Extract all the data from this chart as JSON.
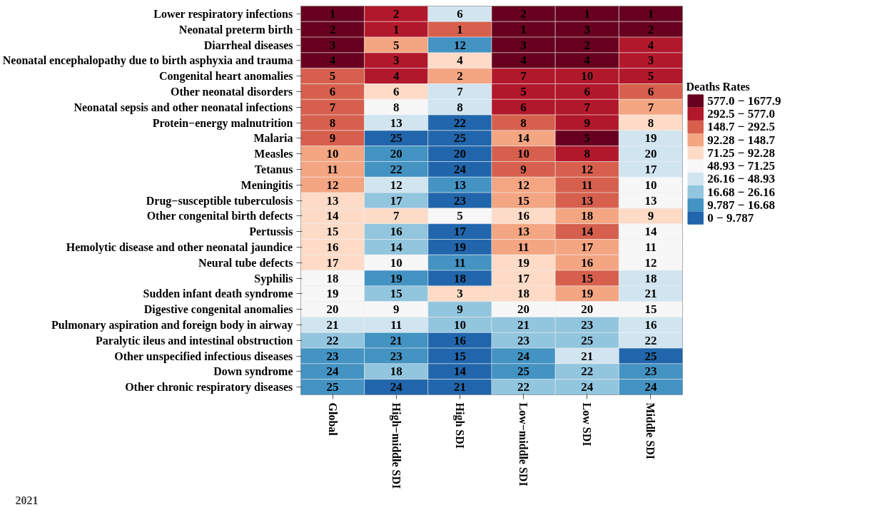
{
  "chart_data": [
    {
      "type": "heatmap",
      "categories": [
        "Global",
        "High−middle SDI",
        "High SDI",
        "Low−middle SDI",
        "Low SDI",
        "Middle SDI"
      ],
      "y_categories": [
        "Lower respiratory infections",
        "Neonatal preterm birth",
        "Diarrheal diseases",
        "Neonatal encephalopathy due to birth asphyxia and trauma",
        "Congenital heart anomalies",
        "Other neonatal disorders",
        "Neonatal sepsis and other neonatal infections",
        "Protein−energy malnutrition",
        "Malaria",
        "Measles",
        "Tetanus",
        "Meningitis",
        "Drug−susceptible tuberculosis",
        "Other congenital birth defects",
        "Pertussis",
        "Hemolytic disease and other neonatal jaundice",
        "Neural tube defects",
        "Syphilis",
        "Sudden infant death syndrome",
        "Digestive congenital anomalies",
        "Pulmonary aspiration and foreign body in airway",
        "Paralytic ileus and intestinal obstruction",
        "Other unspecified infectious diseases",
        "Down syndrome",
        "Other chronic respiratory diseases"
      ],
      "cells": [
        [
          1,
          2,
          6,
          2,
          1,
          1
        ],
        [
          2,
          1,
          1,
          1,
          3,
          2
        ],
        [
          3,
          5,
          12,
          3,
          2,
          4
        ],
        [
          4,
          3,
          4,
          4,
          4,
          3
        ],
        [
          5,
          4,
          2,
          7,
          10,
          5
        ],
        [
          6,
          6,
          7,
          5,
          6,
          6
        ],
        [
          7,
          8,
          8,
          6,
          7,
          7
        ],
        [
          8,
          13,
          22,
          8,
          9,
          8
        ],
        [
          9,
          25,
          25,
          14,
          5,
          19
        ],
        [
          10,
          20,
          20,
          10,
          8,
          20
        ],
        [
          11,
          22,
          24,
          9,
          12,
          17
        ],
        [
          12,
          12,
          13,
          12,
          11,
          10
        ],
        [
          13,
          17,
          23,
          15,
          13,
          13
        ],
        [
          14,
          7,
          5,
          16,
          18,
          9
        ],
        [
          15,
          16,
          17,
          13,
          14,
          14
        ],
        [
          16,
          14,
          19,
          11,
          17,
          11
        ],
        [
          17,
          10,
          11,
          19,
          16,
          12
        ],
        [
          18,
          19,
          18,
          17,
          15,
          18
        ],
        [
          19,
          15,
          3,
          18,
          19,
          21
        ],
        [
          20,
          9,
          9,
          20,
          20,
          15
        ],
        [
          21,
          11,
          10,
          21,
          23,
          16
        ],
        [
          22,
          21,
          16,
          23,
          25,
          22
        ],
        [
          23,
          23,
          15,
          24,
          21,
          25
        ],
        [
          24,
          18,
          14,
          25,
          22,
          23
        ],
        [
          25,
          24,
          21,
          22,
          24,
          24
        ]
      ],
      "colors": [
        [
          "#67001f",
          "#b2182b",
          "#d1e5f0",
          "#67001f",
          "#67001f",
          "#67001f"
        ],
        [
          "#67001f",
          "#b2182b",
          "#d6604d",
          "#67001f",
          "#67001f",
          "#67001f"
        ],
        [
          "#67001f",
          "#f4a582",
          "#4393c3",
          "#67001f",
          "#67001f",
          "#b2182b"
        ],
        [
          "#67001f",
          "#b2182b",
          "#fddbc7",
          "#67001f",
          "#67001f",
          "#b2182b"
        ],
        [
          "#d6604d",
          "#b2182b",
          "#f4a582",
          "#b2182b",
          "#b2182b",
          "#b2182b"
        ],
        [
          "#d6604d",
          "#fddbc7",
          "#d1e5f0",
          "#b2182b",
          "#b2182b",
          "#d6604d"
        ],
        [
          "#d6604d",
          "#f7f7f7",
          "#d1e5f0",
          "#b2182b",
          "#b2182b",
          "#f4a582"
        ],
        [
          "#d6604d",
          "#d1e5f0",
          "#2166ac",
          "#d6604d",
          "#b2182b",
          "#fddbc7"
        ],
        [
          "#d6604d",
          "#2166ac",
          "#2166ac",
          "#f4a582",
          "#67001f",
          "#d1e5f0"
        ],
        [
          "#f4a582",
          "#4393c3",
          "#2166ac",
          "#d6604d",
          "#b2182b",
          "#d1e5f0"
        ],
        [
          "#f4a582",
          "#4393c3",
          "#2166ac",
          "#d6604d",
          "#d6604d",
          "#d1e5f0"
        ],
        [
          "#f4a582",
          "#d1e5f0",
          "#4393c3",
          "#f4a582",
          "#d6604d",
          "#f7f7f7"
        ],
        [
          "#fddbc7",
          "#92c5de",
          "#2166ac",
          "#f4a582",
          "#d6604d",
          "#f7f7f7"
        ],
        [
          "#fddbc7",
          "#fddbc7",
          "#f7f7f7",
          "#fddbc7",
          "#f4a582",
          "#fddbc7"
        ],
        [
          "#fddbc7",
          "#92c5de",
          "#2166ac",
          "#f4a582",
          "#d6604d",
          "#f7f7f7"
        ],
        [
          "#fddbc7",
          "#92c5de",
          "#2166ac",
          "#f4a582",
          "#f4a582",
          "#f7f7f7"
        ],
        [
          "#fddbc7",
          "#f7f7f7",
          "#4393c3",
          "#fddbc7",
          "#f4a582",
          "#f7f7f7"
        ],
        [
          "#f7f7f7",
          "#4393c3",
          "#2166ac",
          "#fddbc7",
          "#d6604d",
          "#d1e5f0"
        ],
        [
          "#f7f7f7",
          "#92c5de",
          "#fddbc7",
          "#fddbc7",
          "#f4a582",
          "#d1e5f0"
        ],
        [
          "#f7f7f7",
          "#f7f7f7",
          "#92c5de",
          "#f7f7f7",
          "#f7f7f7",
          "#f7f7f7"
        ],
        [
          "#d1e5f0",
          "#d1e5f0",
          "#92c5de",
          "#92c5de",
          "#92c5de",
          "#d1e5f0"
        ],
        [
          "#92c5de",
          "#4393c3",
          "#2166ac",
          "#92c5de",
          "#92c5de",
          "#d1e5f0"
        ],
        [
          "#4393c3",
          "#4393c3",
          "#2166ac",
          "#4393c3",
          "#d1e5f0",
          "#2166ac"
        ],
        [
          "#4393c3",
          "#92c5de",
          "#2166ac",
          "#4393c3",
          "#92c5de",
          "#4393c3"
        ],
        [
          "#4393c3",
          "#2166ac",
          "#2166ac",
          "#92c5de",
          "#92c5de",
          "#4393c3"
        ]
      ],
      "data_labels": true,
      "annotations": [
        "2021"
      ]
    },
    {
      "type": "other",
      "legend_title": "Deaths Rates",
      "categories": [
        "577.0 − 1677.9",
        "292.5 − 577.0",
        "148.7 − 292.5",
        "92.28 − 148.7",
        "71.25 − 92.28",
        "48.93 − 71.25",
        "26.16 − 48.93",
        "16.68 − 26.16",
        "9.787 − 16.68",
        "0 − 9.787"
      ],
      "colors": [
        "#67001f",
        "#b2182b",
        "#d6604d",
        "#f4a582",
        "#fddbc7",
        "#f7f7f7",
        "#d1e5f0",
        "#92c5de",
        "#4393c3",
        "#2166ac"
      ]
    }
  ]
}
